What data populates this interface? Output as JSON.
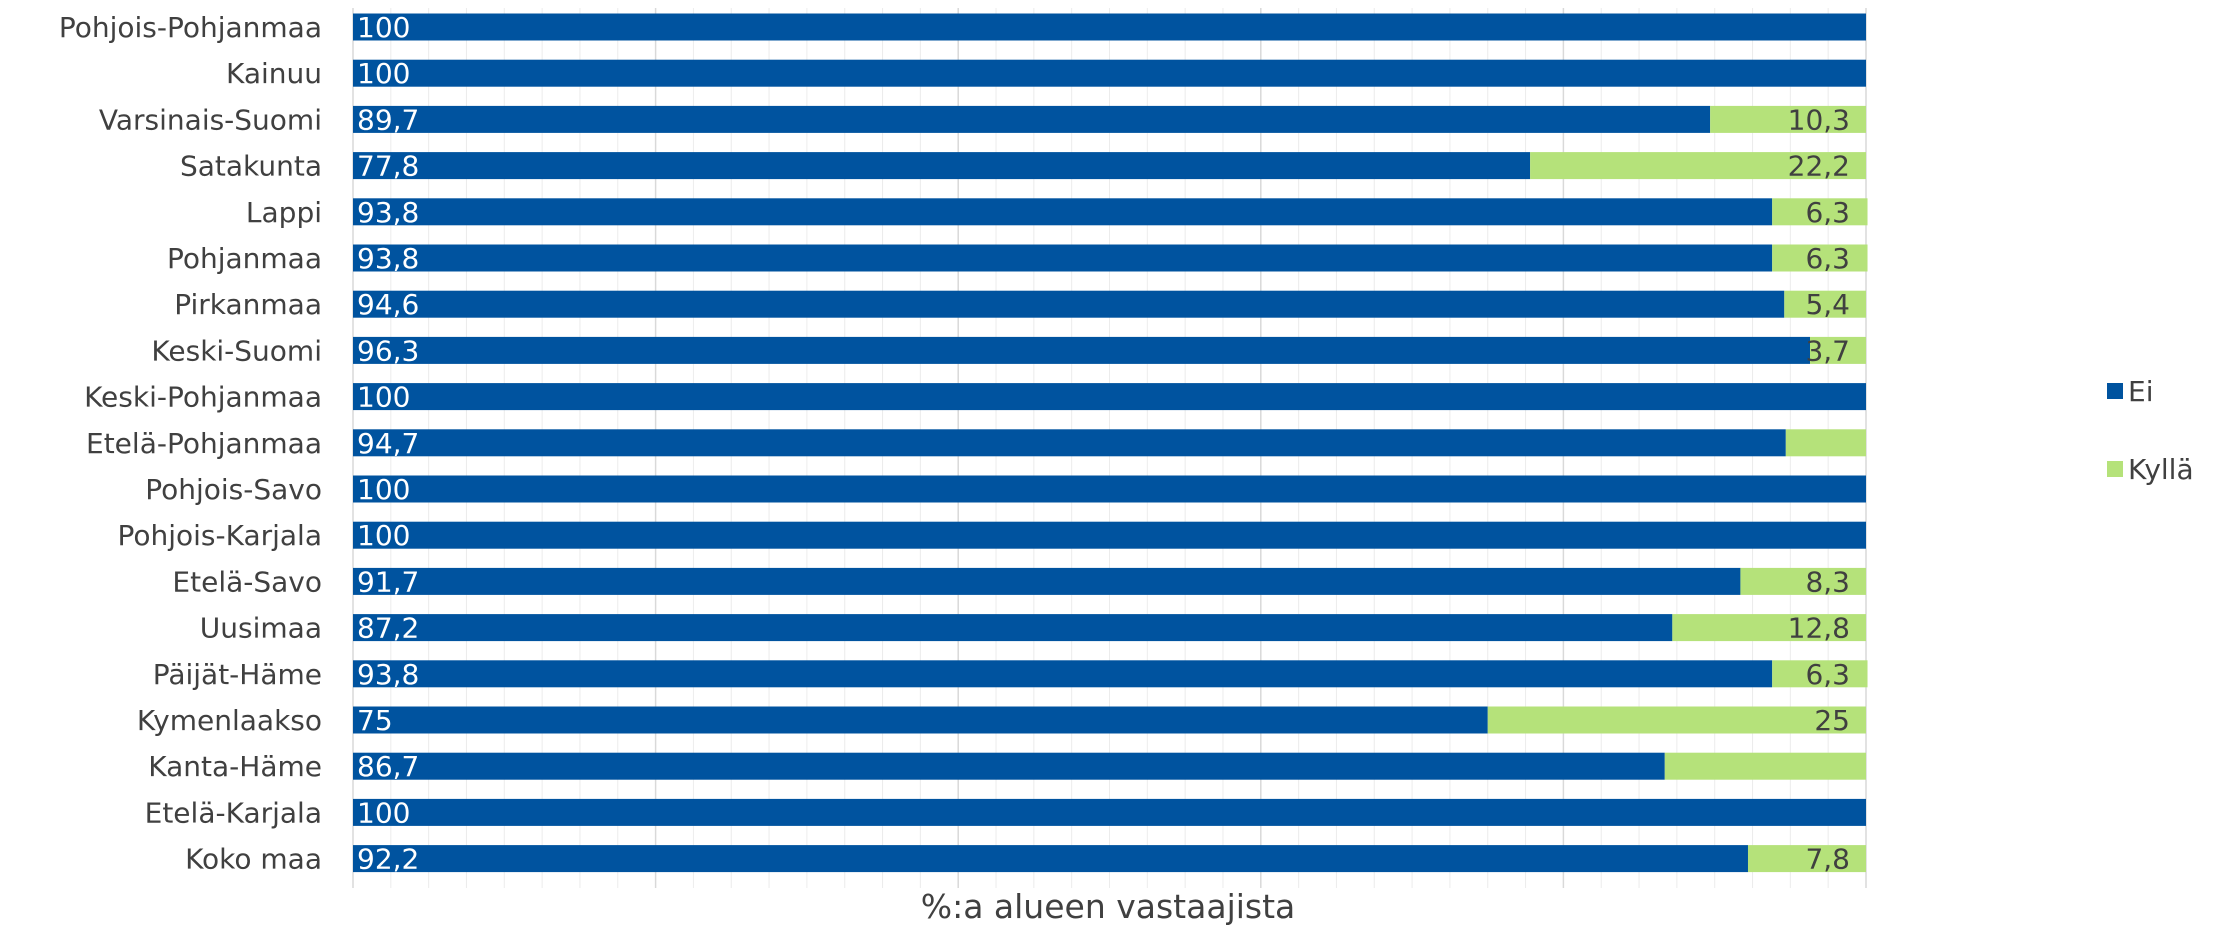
{
  "chart_data": {
    "type": "bar",
    "orientation": "horizontal",
    "stacked": true,
    "title": "",
    "xlabel": "%:a alueen vastaajista",
    "ylabel": "",
    "xlim": [
      0,
      100
    ],
    "grid": true,
    "legend_position": "right",
    "categories": [
      "Pohjois-Pohjanmaa",
      "Kainuu",
      "Varsinais-Suomi",
      "Satakunta",
      "Lappi",
      "Pohjanmaa",
      "Pirkanmaa",
      "Keski-Suomi",
      "Keski-Pohjanmaa",
      "Etelä-Pohjanmaa",
      "Pohjois-Savo",
      "Pohjois-Karjala",
      "Etelä-Savo",
      "Uusimaa",
      "Päijät-Häme",
      "Kymenlaakso",
      "Kanta-Häme",
      "Etelä-Karjala",
      "Koko maa"
    ],
    "series": [
      {
        "name": "Ei",
        "color": "#00539f",
        "values": [
          100,
          100,
          89.7,
          77.8,
          93.8,
          93.8,
          94.6,
          96.3,
          100,
          94.7,
          100,
          100,
          91.7,
          87.2,
          93.8,
          75,
          86.7,
          100,
          92.2
        ],
        "labels": [
          "100",
          "100",
          "89,7",
          "77,8",
          "93,8",
          "93,8",
          "94,6",
          "96,3",
          "100",
          "94,7",
          "100",
          "100",
          "91,7",
          "87,2",
          "93,8",
          "75",
          "86,7",
          "100",
          "92,2"
        ]
      },
      {
        "name": "Kyllä",
        "color": "#b5e27a",
        "values": [
          0,
          0,
          10.3,
          22.2,
          6.3,
          6.3,
          5.4,
          3.7,
          0,
          5.3,
          0,
          0,
          8.3,
          12.8,
          6.3,
          25,
          13.3,
          0,
          7.8
        ],
        "labels": [
          "",
          "",
          "10,3",
          "22,2",
          "6,3",
          "6,3",
          "5,4",
          "3,7",
          "",
          "",
          "",
          "",
          "8,3",
          "12,8",
          "6,3",
          "25",
          "",
          "",
          "7,8"
        ]
      }
    ]
  }
}
